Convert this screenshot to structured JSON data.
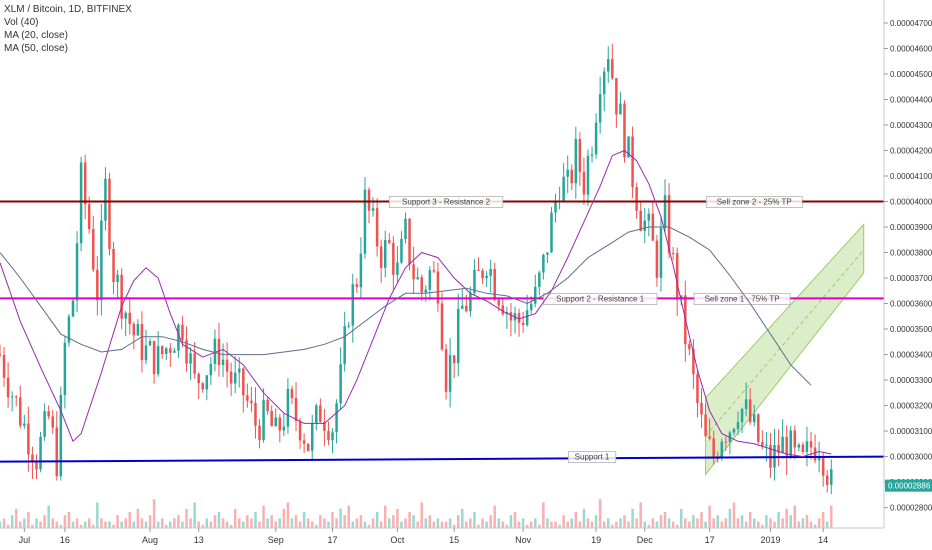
{
  "legend": {
    "symbol": "XLM / Bitcoin, 1D, BITFINEX",
    "volume": "Vol (40)",
    "ma_fast": "MA (20, close)",
    "ma_slow": "MA (50, close)"
  },
  "price_tag": "0.00002886",
  "colors": {
    "up": "#26a69a",
    "down": "#ef5350",
    "ma_fast": "#9c27b0",
    "ma_slow": "#5d6d8c",
    "resistance": "#8b0000",
    "support2": "#e000c8",
    "support1": "#0000cc",
    "channel": "#9ccc65",
    "price_tag": "#26a69a"
  },
  "chart_data": {
    "type": "candlestick",
    "title": "XLM / Bitcoin, 1D, BITFINEX",
    "ylim": [
      2.72e-05,
      4.79e-05
    ],
    "y_ticks": [
      "0.00004700",
      "0.00004600",
      "0.00004500",
      "0.00004400",
      "0.00004300",
      "0.00004200",
      "0.00004100",
      "0.00004000",
      "0.00003900",
      "0.00003800",
      "0.00003700",
      "0.00003600",
      "0.00003500",
      "0.00003400",
      "0.00003300",
      "0.00003200",
      "0.00003100",
      "0.00003000",
      "0.00002900",
      "0.00002800"
    ],
    "x_ticks": [
      {
        "label": "Jul",
        "day": 6
      },
      {
        "label": "16",
        "day": 16
      },
      {
        "label": "Aug",
        "day": 37
      },
      {
        "label": "13",
        "day": 49
      },
      {
        "label": "Sep",
        "day": 68
      },
      {
        "label": "17",
        "day": 82
      },
      {
        "label": "Oct",
        "day": 98
      },
      {
        "label": "15",
        "day": 112
      },
      {
        "label": "Nov",
        "day": 129
      },
      {
        "label": "19",
        "day": 147
      },
      {
        "label": "Dec",
        "day": 159
      },
      {
        "label": "17",
        "day": 175
      },
      {
        "label": "2019",
        "day": 190
      },
      {
        "label": "14",
        "day": 203
      }
    ],
    "day_range": [
      0,
      218
    ],
    "close_series": [
      [
        0,
        3.4e-05
      ],
      [
        3,
        3.25e-05
      ],
      [
        6,
        3.12e-05
      ],
      [
        9,
        3e-05
      ],
      [
        12,
        3.15e-05
      ],
      [
        14,
        2.99e-05
      ],
      [
        15,
        3.18e-05
      ],
      [
        16,
        3.43e-05
      ],
      [
        18,
        3.62e-05
      ],
      [
        20,
        4.08e-05
      ],
      [
        22,
        3.9e-05
      ],
      [
        24,
        3.65e-05
      ],
      [
        26,
        4.05e-05
      ],
      [
        28,
        3.73e-05
      ],
      [
        30,
        3.62e-05
      ],
      [
        33,
        3.48e-05
      ],
      [
        36,
        3.41e-05
      ],
      [
        39,
        3.38e-05
      ],
      [
        42,
        3.45e-05
      ],
      [
        45,
        3.52e-05
      ],
      [
        48,
        3.29e-05
      ],
      [
        51,
        3.35e-05
      ],
      [
        54,
        3.42e-05
      ],
      [
        57,
        3.3e-05
      ],
      [
        60,
        3.25e-05
      ],
      [
        63,
        3.13e-05
      ],
      [
        66,
        3.15e-05
      ],
      [
        68,
        3.08e-05
      ],
      [
        71,
        3.2e-05
      ],
      [
        74,
        3.13e-05
      ],
      [
        76,
        3.05e-05
      ],
      [
        79,
        3.18e-05
      ],
      [
        82,
        3.12e-05
      ],
      [
        84,
        3.3e-05
      ],
      [
        86,
        3.58e-05
      ],
      [
        88,
        3.7e-05
      ],
      [
        90,
        4e-05
      ],
      [
        92,
        3.9e-05
      ],
      [
        94,
        3.8e-05
      ],
      [
        96,
        3.82e-05
      ],
      [
        98,
        3.72e-05
      ],
      [
        100,
        3.87e-05
      ],
      [
        102,
        3.72e-05
      ],
      [
        104,
        3.65e-05
      ],
      [
        106,
        3.72e-05
      ],
      [
        108,
        3.68e-05
      ],
      [
        110,
        3.32e-05
      ],
      [
        112,
        3.42e-05
      ],
      [
        114,
        3.58e-05
      ],
      [
        116,
        3.62e-05
      ],
      [
        118,
        3.7e-05
      ],
      [
        120,
        3.78e-05
      ],
      [
        122,
        3.68e-05
      ],
      [
        124,
        3.62e-05
      ],
      [
        126,
        3.54e-05
      ],
      [
        128,
        3.53e-05
      ],
      [
        130,
        3.58e-05
      ],
      [
        132,
        3.62e-05
      ],
      [
        134,
        3.75e-05
      ],
      [
        136,
        3.92e-05
      ],
      [
        138,
        4.08e-05
      ],
      [
        140,
        4.05e-05
      ],
      [
        142,
        4.18e-05
      ],
      [
        144,
        4.08e-05
      ],
      [
        146,
        4.25e-05
      ],
      [
        148,
        4.5e-05
      ],
      [
        150,
        4.6e-05
      ],
      [
        152,
        4.4e-05
      ],
      [
        154,
        4.25e-05
      ],
      [
        156,
        4.1e-05
      ],
      [
        158,
        3.95e-05
      ],
      [
        160,
        3.88e-05
      ],
      [
        162,
        3.76e-05
      ],
      [
        164,
        3.95e-05
      ],
      [
        166,
        3.75e-05
      ],
      [
        168,
        3.56e-05
      ],
      [
        170,
        3.38e-05
      ],
      [
        172,
        3.2e-05
      ],
      [
        174,
        3.05e-05
      ],
      [
        176,
        3e-05
      ],
      [
        178,
        3.1e-05
      ],
      [
        180,
        3.12e-05
      ],
      [
        182,
        3.2e-05
      ],
      [
        184,
        3.17e-05
      ],
      [
        186,
        3.1e-05
      ],
      [
        188,
        3.02e-05
      ],
      [
        190,
        2.98e-05
      ],
      [
        192,
        3.03e-05
      ],
      [
        194,
        3.06e-05
      ],
      [
        196,
        2.99e-05
      ],
      [
        198,
        2.97e-05
      ],
      [
        200,
        3.04e-05
      ],
      [
        202,
        3.06e-05
      ],
      [
        204,
        2.95e-05
      ],
      [
        205,
        2.886e-05
      ]
    ],
    "ma_fast": [
      [
        0,
        3.76e-05
      ],
      [
        5,
        3.53e-05
      ],
      [
        10,
        3.35e-05
      ],
      [
        15,
        3.18e-05
      ],
      [
        18,
        3.06e-05
      ],
      [
        20,
        3.09e-05
      ],
      [
        25,
        3.33e-05
      ],
      [
        30,
        3.59e-05
      ],
      [
        33,
        3.69e-05
      ],
      [
        36,
        3.74e-05
      ],
      [
        39,
        3.7e-05
      ],
      [
        42,
        3.56e-05
      ],
      [
        45,
        3.44e-05
      ],
      [
        50,
        3.39e-05
      ],
      [
        55,
        3.42e-05
      ],
      [
        60,
        3.36e-05
      ],
      [
        65,
        3.25e-05
      ],
      [
        70,
        3.17e-05
      ],
      [
        75,
        3.13e-05
      ],
      [
        80,
        3.13e-05
      ],
      [
        85,
        3.2e-05
      ],
      [
        88,
        3.3e-05
      ],
      [
        92,
        3.46e-05
      ],
      [
        96,
        3.62e-05
      ],
      [
        100,
        3.74e-05
      ],
      [
        104,
        3.8e-05
      ],
      [
        108,
        3.78e-05
      ],
      [
        112,
        3.7e-05
      ],
      [
        116,
        3.64e-05
      ],
      [
        120,
        3.61e-05
      ],
      [
        124,
        3.57e-05
      ],
      [
        128,
        3.54e-05
      ],
      [
        132,
        3.56e-05
      ],
      [
        136,
        3.65e-05
      ],
      [
        140,
        3.78e-05
      ],
      [
        144,
        3.92e-05
      ],
      [
        148,
        4.06e-05
      ],
      [
        151,
        4.18e-05
      ],
      [
        154,
        4.2e-05
      ],
      [
        157,
        4.16e-05
      ],
      [
        160,
        4.07e-05
      ],
      [
        163,
        3.94e-05
      ],
      [
        166,
        3.75e-05
      ],
      [
        169,
        3.54e-05
      ],
      [
        172,
        3.34e-05
      ],
      [
        175,
        3.18e-05
      ],
      [
        178,
        3.09e-05
      ],
      [
        182,
        3.06e-05
      ],
      [
        186,
        3.05e-05
      ],
      [
        190,
        3.03e-05
      ],
      [
        194,
        3.01e-05
      ],
      [
        198,
        3e-05
      ],
      [
        202,
        3.02e-05
      ],
      [
        205,
        3.01e-05
      ]
    ],
    "ma_slow": [
      [
        0,
        3.8e-05
      ],
      [
        5,
        3.7e-05
      ],
      [
        10,
        3.59e-05
      ],
      [
        15,
        3.48e-05
      ],
      [
        20,
        3.44e-05
      ],
      [
        25,
        3.41e-05
      ],
      [
        30,
        3.42e-05
      ],
      [
        35,
        3.47e-05
      ],
      [
        40,
        3.47e-05
      ],
      [
        45,
        3.45e-05
      ],
      [
        50,
        3.42e-05
      ],
      [
        55,
        3.4e-05
      ],
      [
        60,
        3.4e-05
      ],
      [
        65,
        3.4e-05
      ],
      [
        70,
        3.41e-05
      ],
      [
        75,
        3.42e-05
      ],
      [
        80,
        3.44e-05
      ],
      [
        85,
        3.47e-05
      ],
      [
        90,
        3.53e-05
      ],
      [
        95,
        3.59e-05
      ],
      [
        100,
        3.64e-05
      ],
      [
        105,
        3.64e-05
      ],
      [
        110,
        3.65e-05
      ],
      [
        115,
        3.66e-05
      ],
      [
        120,
        3.64e-05
      ],
      [
        125,
        3.63e-05
      ],
      [
        130,
        3.6e-05
      ],
      [
        135,
        3.64e-05
      ],
      [
        140,
        3.7e-05
      ],
      [
        145,
        3.78e-05
      ],
      [
        150,
        3.83e-05
      ],
      [
        155,
        3.88e-05
      ],
      [
        160,
        3.9e-05
      ],
      [
        165,
        3.9e-05
      ],
      [
        170,
        3.86e-05
      ],
      [
        175,
        3.81e-05
      ],
      [
        180,
        3.71e-05
      ],
      [
        185,
        3.6e-05
      ],
      [
        190,
        3.48e-05
      ],
      [
        195,
        3.36e-05
      ],
      [
        200,
        3.28e-05
      ]
    ],
    "horizontal_levels": [
      {
        "name": "resistance",
        "value": 4e-05,
        "label": "Support 3 - Resistance 2",
        "label_day": 110,
        "label2": "Sell zone 2 - 25% TP",
        "label2_day": 186
      },
      {
        "name": "support2",
        "value": 3.62e-05,
        "label": "Support 2 - Resistance 1",
        "label_day": 148,
        "label2": "Sell zone 1 - 75% TP",
        "label2_day": 183
      },
      {
        "name": "support1",
        "value": 3e-05,
        "value_start": 2.98e-05,
        "label": "Support 1",
        "label_day": 146
      }
    ],
    "channel": {
      "lower": [
        [
          174,
          2.93e-05
        ],
        [
          213,
          3.72e-05
        ]
      ],
      "upper": [
        [
          174,
          3.23e-05
        ],
        [
          213,
          3.91e-05
        ]
      ],
      "mid": [
        [
          174,
          3.08e-05
        ],
        [
          213,
          3.81e-05
        ]
      ]
    },
    "volume_levels": [
      2,
      3,
      1,
      4,
      6,
      2,
      3,
      5,
      1,
      3,
      2,
      4,
      7,
      3,
      2,
      1,
      4,
      5,
      2,
      3,
      1,
      2,
      3,
      1,
      8,
      3,
      2,
      2,
      1,
      4,
      2,
      3,
      5,
      2,
      6,
      3,
      2,
      4,
      9,
      2,
      3,
      1,
      2,
      3,
      4,
      2,
      6,
      3,
      8,
      2,
      1,
      3,
      2,
      4,
      5,
      3,
      2,
      1,
      6,
      3,
      2,
      4,
      3,
      5,
      2,
      7,
      3,
      4,
      2,
      3,
      6,
      8,
      3,
      4,
      2,
      5,
      3,
      2,
      1,
      4,
      3,
      2,
      5,
      3,
      6,
      4,
      7,
      2,
      3,
      4,
      2,
      1,
      3,
      5,
      2,
      7,
      3,
      4,
      6,
      2,
      3,
      5,
      4,
      2,
      8,
      3,
      4,
      2,
      3,
      2
    ]
  }
}
